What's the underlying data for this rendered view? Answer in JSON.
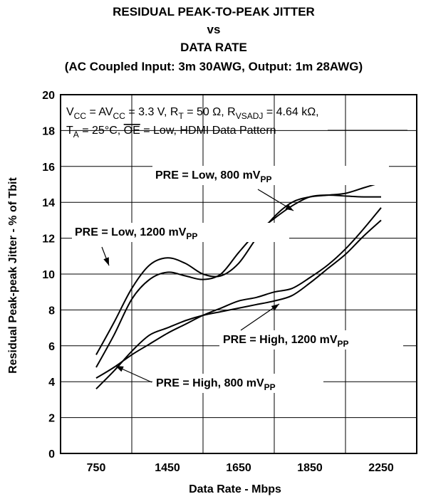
{
  "chart_data": {
    "type": "line",
    "title_lines": [
      "RESIDUAL PEAK-TO-PEAK JITTER",
      "vs",
      "DATA RATE",
      "(AC Coupled Input: 3m 30AWG, Output: 1m 28AWG)"
    ],
    "xlabel": "Data Rate - Mbps",
    "ylabel": "Residual Peak-peak Jitter - % of Tbit",
    "categories": [
      "750",
      "1450",
      "1650",
      "1850",
      "2250"
    ],
    "ylim": [
      0,
      20
    ],
    "yticks": [
      "0",
      "2",
      "4",
      "6",
      "8",
      "10",
      "12",
      "14",
      "16",
      "18",
      "20"
    ],
    "grid": true,
    "conditions": {
      "line1": "V<sub>CC</sub> = AV<sub>CC</sub> = 3.3 V, R<sub>T</sub> = 50 Ω, R<sub>VSADJ</sub> = 4.64 kΩ,",
      "line2": "T<sub>A</sub> = 25°C, <ov>OE</ov> = Low, HDMI Data Pattern"
    },
    "annotations": [
      {
        "series": 0,
        "text": "PRE = Low, 800 mV<sub>PP</sub>"
      },
      {
        "series": 1,
        "text": "PRE = Low, 1200 mV<sub>PP</sub>"
      },
      {
        "series": 2,
        "text": "PRE = High, 1200 mV<sub>PP</sub>"
      },
      {
        "series": 3,
        "text": "PRE = High, 800 mV<sub>PP</sub>"
      }
    ],
    "series": [
      {
        "name": "PRE = Low, 800 mV<sub>PP</sub>",
        "x": [
          0,
          0.25,
          0.5,
          0.75,
          1.0,
          1.25,
          1.5,
          1.75,
          2.0,
          2.25,
          2.5,
          2.75,
          3.0,
          3.25,
          3.5,
          3.75,
          4.0
        ],
        "y": [
          4.8,
          6.6,
          8.6,
          9.7,
          10.1,
          9.9,
          9.7,
          10.0,
          11.2,
          12.3,
          13.1,
          13.8,
          14.3,
          14.4,
          14.35,
          14.3,
          14.3
        ]
      },
      {
        "name": "PRE = Low, 1200 mV<sub>PP</sub>",
        "x": [
          0,
          0.25,
          0.5,
          0.75,
          1.0,
          1.25,
          1.5,
          1.75,
          2.0,
          2.25,
          2.5,
          2.75,
          3.0,
          3.25,
          3.5,
          3.75,
          4.0
        ],
        "y": [
          5.5,
          7.3,
          9.2,
          10.5,
          10.9,
          10.6,
          10.0,
          9.9,
          10.6,
          12.0,
          13.2,
          14.0,
          14.3,
          14.4,
          14.5,
          14.8,
          15.1
        ]
      },
      {
        "name": "PRE = High, 1200 mV<sub>PP</sub>",
        "x": [
          0,
          0.25,
          0.5,
          0.75,
          1.0,
          1.25,
          1.5,
          1.75,
          2.0,
          2.25,
          2.5,
          2.75,
          3.0,
          3.25,
          3.5,
          3.75,
          4.0
        ],
        "y": [
          4.2,
          4.8,
          5.5,
          6.1,
          6.7,
          7.2,
          7.7,
          8.1,
          8.5,
          8.7,
          9.0,
          9.2,
          9.8,
          10.5,
          11.4,
          12.5,
          13.7
        ]
      },
      {
        "name": "PRE = High, 800 mV<sub>PP</sub>",
        "x": [
          0,
          0.25,
          0.5,
          0.75,
          1.0,
          1.25,
          1.5,
          1.75,
          2.0,
          2.25,
          2.5,
          2.75,
          3.0,
          3.25,
          3.5,
          3.75,
          4.0
        ],
        "y": [
          3.6,
          4.6,
          5.7,
          6.6,
          7.0,
          7.4,
          7.7,
          7.9,
          8.1,
          8.3,
          8.5,
          8.8,
          9.5,
          10.3,
          11.1,
          12.1,
          13.0
        ]
      }
    ]
  }
}
